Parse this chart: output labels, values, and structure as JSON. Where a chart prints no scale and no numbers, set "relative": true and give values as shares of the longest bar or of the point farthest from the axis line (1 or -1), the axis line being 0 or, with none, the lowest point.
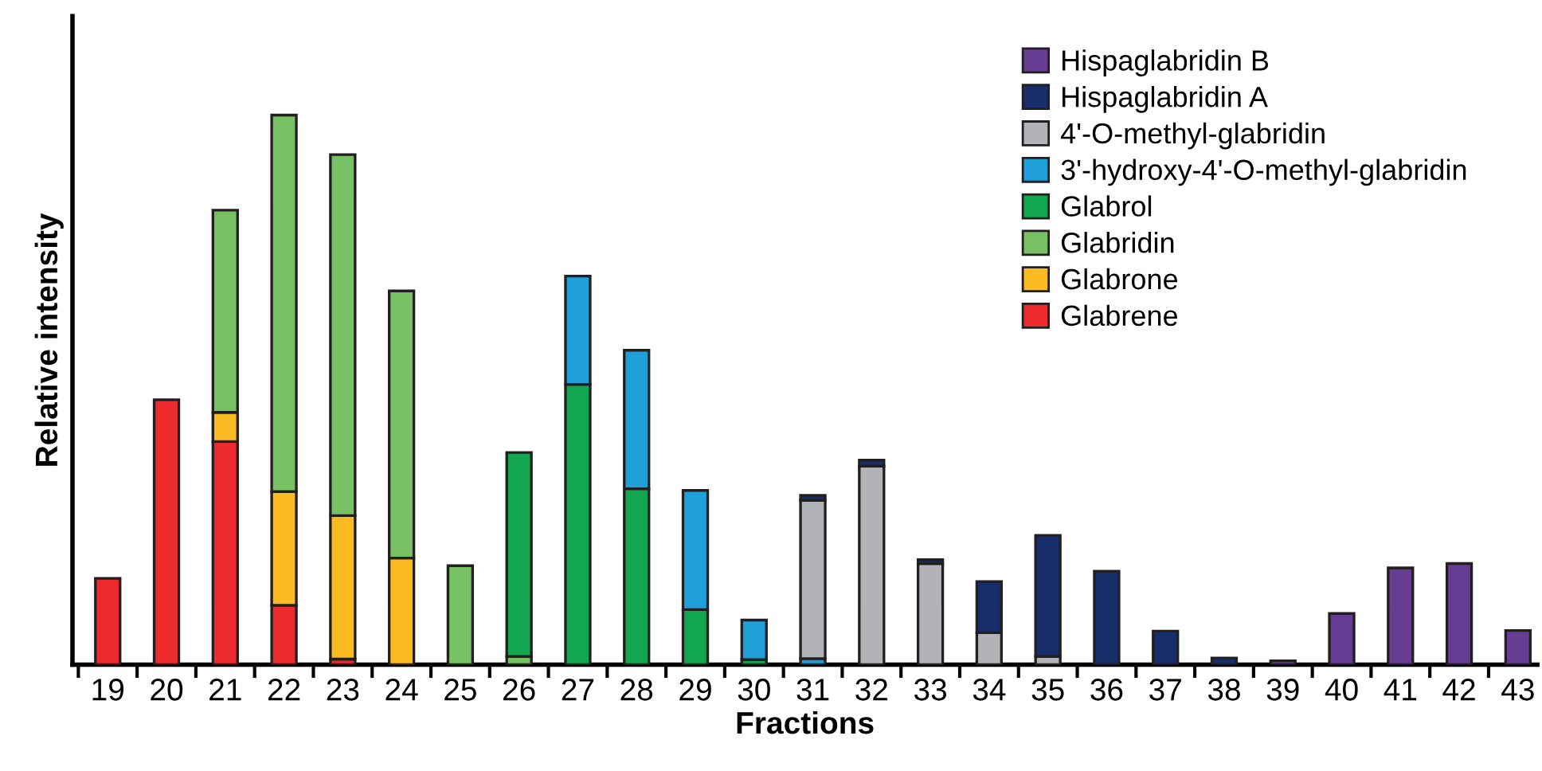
{
  "chart_data": {
    "type": "bar",
    "stacked": true,
    "relative": true,
    "xlabel": "Fractions",
    "ylabel": "Relative intensity",
    "legend": "top right",
    "grid": false,
    "categories": [
      "19",
      "20",
      "21",
      "22",
      "23",
      "24",
      "25",
      "26",
      "27",
      "28",
      "29",
      "30",
      "31",
      "32",
      "33",
      "34",
      "35",
      "36",
      "37",
      "38",
      "39",
      "40",
      "41",
      "42",
      "43"
    ],
    "series": [
      {
        "name": "Glabrene",
        "color": "#ed2a2e",
        "values": [
          0.157,
          0.482,
          0.406,
          0.108,
          0.01,
          null,
          null,
          null,
          null,
          null,
          null,
          null,
          null,
          null,
          null,
          null,
          null,
          null,
          null,
          null,
          null,
          null,
          null,
          null,
          null
        ]
      },
      {
        "name": "Glabrone",
        "color": "#fbbb22",
        "values": [
          null,
          null,
          0.053,
          0.207,
          0.261,
          0.194,
          null,
          null,
          null,
          null,
          null,
          null,
          null,
          null,
          null,
          null,
          null,
          null,
          null,
          null,
          null,
          null,
          null,
          null,
          null
        ]
      },
      {
        "name": "Glabridin",
        "color": "#77c063",
        "values": [
          null,
          null,
          0.368,
          0.685,
          0.657,
          0.486,
          0.18,
          0.015,
          null,
          null,
          null,
          null,
          null,
          null,
          null,
          null,
          null,
          null,
          null,
          null,
          null,
          null,
          null,
          null,
          null
        ]
      },
      {
        "name": "Glabrol",
        "color": "#13a651",
        "values": [
          null,
          null,
          null,
          null,
          null,
          null,
          null,
          0.371,
          0.51,
          0.32,
          0.1,
          0.009,
          null,
          null,
          null,
          null,
          null,
          null,
          null,
          null,
          null,
          null,
          null,
          null,
          null
        ]
      },
      {
        "name": "3'-hydroxy-4'-O-methyl-glabridin",
        "color": "#1fa0d8",
        "values": [
          null,
          null,
          null,
          null,
          null,
          null,
          null,
          null,
          0.197,
          0.252,
          0.217,
          0.072,
          0.011,
          null,
          null,
          null,
          null,
          null,
          null,
          null,
          null,
          null,
          null,
          null,
          null
        ]
      },
      {
        "name": "4'-O-methyl-glabridin",
        "color": "#b1b3b6",
        "values": [
          null,
          null,
          null,
          null,
          null,
          null,
          null,
          null,
          null,
          null,
          null,
          null,
          0.288,
          0.361,
          0.184,
          0.058,
          0.015,
          null,
          null,
          null,
          null,
          null,
          null,
          null,
          null
        ]
      },
      {
        "name": "Hispaglabridin A",
        "color": "#172e6b",
        "values": [
          null,
          null,
          null,
          null,
          null,
          null,
          null,
          null,
          null,
          null,
          null,
          null,
          0.009,
          0.011,
          0.007,
          0.093,
          0.22,
          0.17,
          0.061,
          0.012,
          null,
          null,
          null,
          null,
          null
        ]
      },
      {
        "name": "Hispaglabridin B",
        "color": "#673c93",
        "values": [
          null,
          null,
          null,
          null,
          null,
          null,
          null,
          null,
          null,
          null,
          null,
          null,
          null,
          null,
          null,
          null,
          null,
          null,
          null,
          null,
          0.007,
          0.093,
          0.176,
          0.184,
          0.062
        ]
      }
    ]
  }
}
